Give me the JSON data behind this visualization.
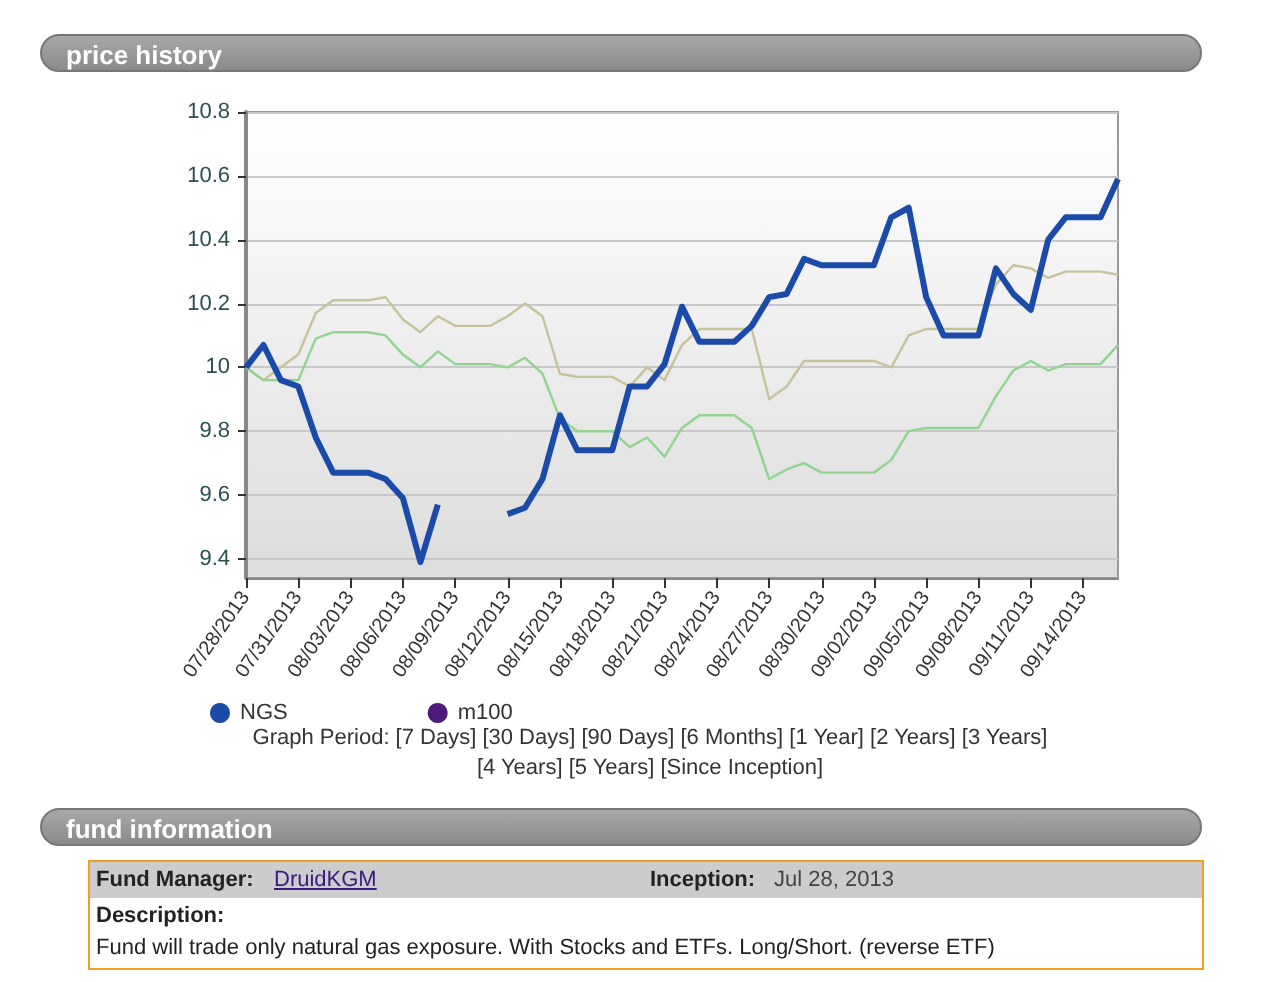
{
  "chart_data": {
    "type": "line",
    "title": "price history",
    "x": [
      "2013-07-28",
      "2013-07-29",
      "2013-07-30",
      "2013-07-31",
      "2013-08-01",
      "2013-08-02",
      "2013-08-03",
      "2013-08-04",
      "2013-08-05",
      "2013-08-06",
      "2013-08-07",
      "2013-08-08",
      "2013-08-09",
      "2013-08-10",
      "2013-08-11",
      "2013-08-12",
      "2013-08-13",
      "2013-08-14",
      "2013-08-15",
      "2013-08-16",
      "2013-08-17",
      "2013-08-18",
      "2013-08-19",
      "2013-08-20",
      "2013-08-21",
      "2013-08-22",
      "2013-08-23",
      "2013-08-24",
      "2013-08-25",
      "2013-08-26",
      "2013-08-27",
      "2013-08-28",
      "2013-08-29",
      "2013-08-30",
      "2013-08-31",
      "2013-09-01",
      "2013-09-02",
      "2013-09-03",
      "2013-09-04",
      "2013-09-05",
      "2013-09-06",
      "2013-09-07",
      "2013-09-08",
      "2013-09-09",
      "2013-09-10",
      "2013-09-11",
      "2013-09-12",
      "2013-09-13",
      "2013-09-14",
      "2013-09-15",
      "2013-09-16"
    ],
    "series": [
      {
        "name": "NGS",
        "color": "#1c4aa8",
        "values": [
          10.0,
          10.07,
          9.96,
          9.94,
          9.78,
          9.67,
          9.67,
          9.67,
          9.65,
          9.59,
          9.39,
          9.57,
          null,
          null,
          null,
          9.54,
          9.56,
          9.65,
          9.85,
          9.74,
          9.74,
          9.74,
          9.94,
          9.94,
          10.01,
          10.19,
          10.08,
          10.08,
          10.08,
          10.13,
          10.22,
          10.23,
          10.34,
          10.32,
          10.32,
          10.32,
          10.32,
          10.47,
          10.5,
          10.22,
          10.1,
          10.1,
          10.1,
          10.31,
          10.23,
          10.18,
          10.4,
          10.47,
          10.47,
          10.47,
          10.59
        ]
      },
      {
        "name": "m100",
        "color": "#4b1a7a",
        "values": [
          null,
          null,
          null,
          null,
          null,
          null,
          null,
          null,
          null,
          null,
          null,
          null,
          null,
          null,
          null,
          null,
          null,
          null,
          null,
          null,
          null,
          null,
          null,
          null,
          null,
          null,
          null,
          null,
          null,
          null,
          null,
          null,
          null,
          null,
          null,
          null,
          null,
          null,
          null,
          null,
          null,
          null,
          null,
          null,
          null,
          null,
          null,
          null,
          null,
          null,
          null
        ]
      },
      {
        "color": "#8fd48f",
        "values": [
          10.0,
          9.96,
          9.96,
          9.96,
          10.09,
          10.11,
          10.11,
          10.11,
          10.1,
          10.04,
          10.0,
          10.05,
          10.01,
          10.01,
          10.01,
          10.0,
          10.03,
          9.98,
          9.84,
          9.8,
          9.8,
          9.8,
          9.75,
          9.78,
          9.72,
          9.81,
          9.85,
          9.85,
          9.85,
          9.81,
          9.65,
          9.68,
          9.7,
          9.67,
          9.67,
          9.67,
          9.67,
          9.71,
          9.8,
          9.81,
          9.81,
          9.81,
          9.81,
          9.91,
          9.99,
          10.02,
          9.99,
          10.01,
          10.01,
          10.01,
          10.07
        ]
      },
      {
        "color": "#c6c39a",
        "values": [
          10.0,
          9.96,
          10.0,
          10.04,
          10.17,
          10.21,
          10.21,
          10.21,
          10.22,
          10.15,
          10.11,
          10.16,
          10.13,
          10.13,
          10.13,
          10.16,
          10.2,
          10.16,
          9.98,
          9.97,
          9.97,
          9.97,
          9.94,
          10.0,
          9.96,
          10.07,
          10.12,
          10.12,
          10.12,
          10.12,
          9.9,
          9.94,
          10.02,
          10.02,
          10.02,
          10.02,
          10.02,
          10.0,
          10.1,
          10.12,
          10.12,
          10.12,
          10.12,
          10.26,
          10.32,
          10.31,
          10.28,
          10.3,
          10.3,
          10.3,
          10.29
        ]
      }
    ],
    "xlim": [
      "2013-07-28",
      "2013-09-16"
    ],
    "xticks": [
      {
        "value": "2013-07-28",
        "label": "07/28/2013"
      },
      {
        "value": "2013-07-31",
        "label": "07/31/2013"
      },
      {
        "value": "2013-08-03",
        "label": "08/03/2013"
      },
      {
        "value": "2013-08-06",
        "label": "08/06/2013"
      },
      {
        "value": "2013-08-09",
        "label": "08/09/2013"
      },
      {
        "value": "2013-08-12",
        "label": "08/12/2013"
      },
      {
        "value": "2013-08-15",
        "label": "08/15/2013"
      },
      {
        "value": "2013-08-18",
        "label": "08/18/2013"
      },
      {
        "value": "2013-08-21",
        "label": "08/21/2013"
      },
      {
        "value": "2013-08-24",
        "label": "08/24/2013"
      },
      {
        "value": "2013-08-27",
        "label": "08/27/2013"
      },
      {
        "value": "2013-08-30",
        "label": "08/30/2013"
      },
      {
        "value": "2013-09-02",
        "label": "09/02/2013"
      },
      {
        "value": "2013-09-05",
        "label": "09/05/2013"
      },
      {
        "value": "2013-09-08",
        "label": "09/08/2013"
      },
      {
        "value": "2013-09-11",
        "label": "09/11/2013"
      },
      {
        "value": "2013-09-14",
        "label": "09/14/2013"
      }
    ],
    "ylim": [
      9.34,
      10.8
    ],
    "yticks": [
      9.4,
      9.6,
      9.8,
      10,
      10.2,
      10.4,
      10.6,
      10.8
    ],
    "grid": "y",
    "legend": "bottom",
    "marker": "none",
    "line_style": "solid",
    "annotations": [
      "Graph Period: [7 Days] [30 Days] [90 Days] [6 Months] [1 Year] [2 Years] [3 Years] [4 Years] [5 Years] [Since Inception]",
      "fund information",
      "Fund Manager:",
      "DruidKGM",
      "Inception:",
      "Jul 28, 2013",
      "Description:",
      "Fund will trade only natural gas exposure. With Stocks and ETFs. Long/Short. (reverse ETF)"
    ]
  }
}
